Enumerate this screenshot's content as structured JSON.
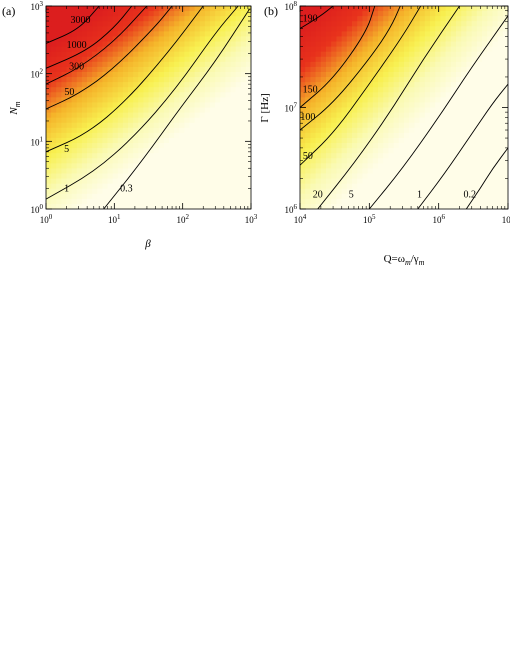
{
  "chart_data": [
    {
      "type": "heatmap",
      "panel_label": "(a)",
      "xlabel": "β",
      "ylabel": "N",
      "ylabel_sub": "m",
      "xscale": "log",
      "yscale": "log",
      "xlim": [
        1,
        1000
      ],
      "ylim": [
        1,
        1000
      ],
      "x_ticks": [
        {
          "value": 1,
          "base": "10",
          "exp": "0"
        },
        {
          "value": 10,
          "base": "10",
          "exp": "1"
        },
        {
          "value": 100,
          "base": "10",
          "exp": "2"
        },
        {
          "value": 1000,
          "base": "10",
          "exp": "3"
        }
      ],
      "y_ticks": [
        {
          "value": 1,
          "base": "10",
          "exp": "0"
        },
        {
          "value": 10,
          "base": "10",
          "exp": "1"
        },
        {
          "value": 100,
          "base": "10",
          "exp": "2"
        },
        {
          "value": 1000,
          "base": "10",
          "exp": "3"
        }
      ],
      "colormap": [
        "#fffde8",
        "#fafab4",
        "#f8f050",
        "#f5b42a",
        "#e8321c",
        "#dc1e1e"
      ],
      "contours": [
        {
          "label": "0.3",
          "points": [
            [
              7,
              1
            ],
            [
              25,
              5
            ],
            [
              90,
              30
            ],
            [
              300,
              150
            ],
            [
              950,
              900
            ]
          ],
          "label_at": [
            15,
            1.8
          ]
        },
        {
          "label": "1",
          "points": [
            [
              1,
              1.4
            ],
            [
              5,
              3.5
            ],
            [
              20,
              12
            ],
            [
              80,
              60
            ],
            [
              300,
              400
            ],
            [
              650,
              1000
            ]
          ],
          "label_at": [
            2,
            1.8
          ]
        },
        {
          "label": "5",
          "points": [
            [
              1,
              7
            ],
            [
              4,
              13
            ],
            [
              15,
              40
            ],
            [
              60,
              200
            ],
            [
              200,
              1000
            ]
          ],
          "label_at": [
            2,
            7
          ]
        },
        {
          "label": "50",
          "points": [
            [
              1,
              30
            ],
            [
              3,
              50
            ],
            [
              10,
              120
            ],
            [
              40,
              500
            ],
            [
              70,
              1000
            ]
          ],
          "label_at": [
            2.2,
            48
          ]
        },
        {
          "label": "300",
          "points": [
            [
              1,
              70
            ],
            [
              3,
              120
            ],
            [
              10,
              300
            ],
            [
              30,
              1000
            ]
          ],
          "label_at": [
            2.8,
            115
          ]
        },
        {
          "label": "1000",
          "points": [
            [
              1,
              120
            ],
            [
              4,
              220
            ],
            [
              10,
              480
            ],
            [
              18,
              1000
            ]
          ],
          "label_at": [
            2.8,
            240
          ]
        },
        {
          "label": "3000",
          "points": [
            [
              1,
              280
            ],
            [
              3,
              450
            ],
            [
              6,
              1000
            ]
          ],
          "label_at": [
            3.2,
            560
          ]
        }
      ]
    },
    {
      "type": "heatmap",
      "panel_label": "(b)",
      "xlabel": "Q=ω",
      "xlabel_sub1": "m",
      "xlabel_mid": "/γ",
      "xlabel_sub2": "m",
      "ylabel": "Γ [Hz]",
      "xscale": "log",
      "yscale": "log",
      "xlim": [
        10000,
        10000000
      ],
      "ylim": [
        1000000,
        100000000
      ],
      "x_ticks": [
        {
          "value": 10000,
          "base": "10",
          "exp": "4"
        },
        {
          "value": 100000,
          "base": "10",
          "exp": "5"
        },
        {
          "value": 1000000,
          "base": "10",
          "exp": "6"
        },
        {
          "value": 10000000,
          "base": "10",
          "exp": "7"
        }
      ],
      "y_ticks": [
        {
          "value": 1000000,
          "base": "10",
          "exp": "6"
        },
        {
          "value": 10000000,
          "base": "10",
          "exp": "7"
        },
        {
          "value": 100000000,
          "base": "10",
          "exp": "8"
        }
      ],
      "colormap": [
        "#fffde8",
        "#fafab4",
        "#f8f050",
        "#f5b42a",
        "#e8321c",
        "#dc1e1e"
      ],
      "contours": [
        {
          "label": "0.2",
          "points": [
            [
              2500000,
              1000000
            ],
            [
              4000000,
              1600000
            ],
            [
              6000000,
              2500000
            ],
            [
              10000000,
              4000000
            ]
          ],
          "label_at": [
            2800000,
            1300000
          ]
        },
        {
          "label": "1",
          "points": [
            [
              500000,
              1000000
            ],
            [
              1200000,
              2200000
            ],
            [
              3000000,
              5500000
            ],
            [
              6000000,
              11000000
            ],
            [
              10000000,
              17000000
            ]
          ],
          "label_at": [
            530000,
            1300000
          ]
        },
        {
          "label": "5",
          "points": [
            [
              100000,
              1000000
            ],
            [
              300000,
              2500000
            ],
            [
              1000000,
              8000000
            ],
            [
              3000000,
              25000000
            ],
            [
              10000000,
              80000000
            ]
          ],
          "label_at": [
            55000,
            1300000
          ]
        },
        {
          "label": "20",
          "points": [
            [
              18000,
              1000000
            ],
            [
              60000,
              2800000
            ],
            [
              200000,
              9000000
            ],
            [
              600000,
              30000000
            ],
            [
              2000000,
              100000000
            ]
          ],
          "label_at": [
            18000,
            1300000
          ]
        },
        {
          "label": "50",
          "points": [
            [
              10000,
              2700000
            ],
            [
              30000,
              5500000
            ],
            [
              100000,
              17000000
            ],
            [
              300000,
              50000000
            ],
            [
              550000,
              100000000
            ]
          ],
          "label_at": [
            13000,
            3100000
          ]
        },
        {
          "label": "100",
          "points": [
            [
              10000,
              6000000
            ],
            [
              30000,
              11000000
            ],
            [
              100000,
              30000000
            ],
            [
              200000,
              60000000
            ],
            [
              280000,
              100000000
            ]
          ],
          "label_at": [
            13000,
            7500000
          ]
        },
        {
          "label": "150",
          "points": [
            [
              10000,
              10000000
            ],
            [
              30000,
              19000000
            ],
            [
              90000,
              55000000
            ],
            [
              120000,
              100000000
            ]
          ],
          "label_at": [
            14000,
            14000000
          ]
        },
        {
          "label": "190",
          "points": [
            [
              10000,
              60000000
            ],
            [
              20000,
              80000000
            ],
            [
              30000,
              100000000
            ]
          ],
          "label_at": [
            14000,
            70000000
          ]
        }
      ]
    }
  ]
}
